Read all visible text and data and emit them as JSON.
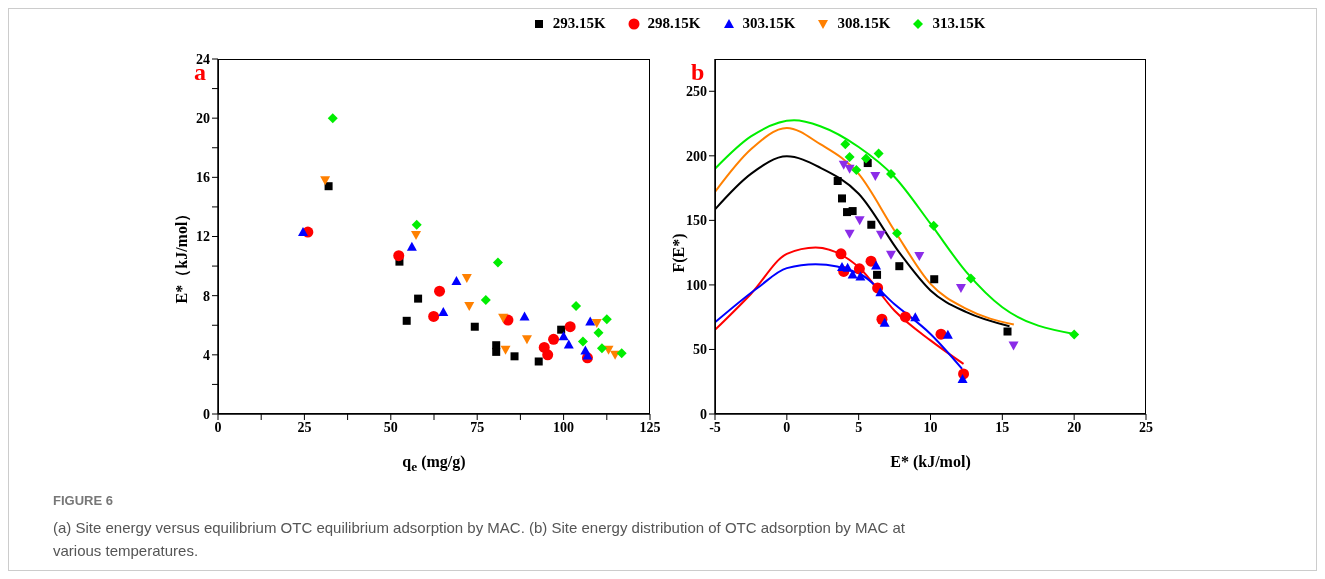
{
  "chart_data": [
    {
      "type": "scatter",
      "xlabel": "q$_{e}$ (mg/g)",
      "ylabel": "E*（kJ/mol）",
      "xlim": [
        0,
        125
      ],
      "xticks": [
        0,
        {
          "value": 12.5,
          "label": null
        },
        25,
        {
          "value": 37.5,
          "label": null
        },
        50,
        {
          "value": 62.5,
          "label": null
        },
        75,
        {
          "value": 87.5,
          "label": null
        },
        100,
        {
          "value": 112.5,
          "label": null
        },
        125
      ],
      "ylim": [
        0,
        24
      ],
      "yticks": [
        0,
        {
          "value": 2,
          "label": null
        },
        4,
        {
          "value": 6,
          "label": null
        },
        8,
        {
          "value": 10,
          "label": null
        },
        12,
        {
          "value": 14,
          "label": null
        },
        16,
        {
          "value": 18,
          "label": null
        },
        20,
        {
          "value": 22,
          "label": null
        },
        24
      ],
      "legend": "top",
      "annotations": [
        "a"
      ],
      "series": [
        {
          "name": "293.15K",
          "color": "#000000",
          "marker": "square",
          "x": [
            32.0,
            52.5,
            54.6,
            57.9,
            74.3,
            80.5,
            80.5,
            85.8,
            92.8,
            99.3
          ],
          "values": [
            15.4,
            10.3,
            6.3,
            7.8,
            5.9,
            4.65,
            4.2,
            3.9,
            3.55,
            5.7
          ]
        },
        {
          "name": "298.15K",
          "color": "#ff0000",
          "marker": "circle",
          "x": [
            26.0,
            52.3,
            62.4,
            64.1,
            83.9,
            94.4,
            95.4,
            97.1,
            101.9,
            106.9
          ],
          "values": [
            12.3,
            10.7,
            6.6,
            8.3,
            6.35,
            4.5,
            4.0,
            5.05,
            5.9,
            3.8
          ]
        },
        {
          "name": "303.15K",
          "color": "#0000ff",
          "marker": "triangle",
          "x": [
            24.6,
            56.1,
            65.2,
            69.0,
            88.7,
            100.0,
            101.5,
            106.3,
            106.9,
            107.7
          ],
          "values": [
            12.3,
            11.3,
            6.9,
            9.0,
            6.6,
            5.25,
            4.7,
            4.3,
            3.95,
            6.25
          ]
        },
        {
          "name": "308.15K",
          "color": "#ff8000",
          "marker": "triangle-down",
          "x": [
            31.0,
            57.3,
            72.0,
            72.7,
            82.5,
            83.2,
            89.4,
            109.6,
            113.0,
            114.9
          ],
          "values": [
            15.8,
            12.1,
            9.2,
            7.3,
            6.5,
            4.35,
            5.05,
            6.15,
            4.35,
            4.0
          ]
        },
        {
          "name": "313.15K",
          "color": "#00ee00",
          "marker": "diamond",
          "x": [
            33.2,
            57.5,
            77.5,
            81.0,
            103.6,
            105.6,
            110.1,
            111.1,
            112.5,
            116.8
          ],
          "values": [
            20.0,
            12.8,
            7.7,
            10.25,
            7.3,
            4.9,
            5.5,
            4.45,
            6.4,
            4.1
          ]
        }
      ]
    },
    {
      "type": "scatter",
      "xlabel": "E* (kJ/mol)",
      "ylabel": "F(E*)",
      "xlim": [
        -5,
        25
      ],
      "xticks": [
        -5,
        0,
        5,
        10,
        15,
        20,
        25
      ],
      "ylim": [
        0,
        275
      ],
      "yticks": [
        0,
        50,
        100,
        150,
        200,
        250
      ],
      "annotations": [
        "b",
        "FIGURE 6",
        "(a) Site energy versus equilibrium OTC equilibrium adsorption by MAC. (b) Site energy distribution of OTC adsorption by MAC at various temperatures."
      ],
      "series": [
        {
          "type": "line",
          "color": "#000000",
          "marker": "none",
          "x": [
            -5,
            -2.5,
            0,
            2.33,
            5,
            7.9,
            10,
            12.5,
            15.5
          ],
          "values": [
            158.5,
            186,
            199.6,
            190.8,
            170.6,
            124,
            95.7,
            78.9,
            68
          ]
        },
        {
          "type": "line",
          "color": "#ff8000",
          "marker": "none",
          "x": [
            -5,
            -2.5,
            0,
            2.33,
            5,
            7.5,
            10,
            12.5,
            15.8
          ],
          "values": [
            172,
            205,
            221.6,
            209,
            186,
            142,
            100.8,
            81.4,
            69.3
          ]
        },
        {
          "type": "line",
          "color": "#00ee00",
          "marker": "none",
          "x": [
            -5,
            -2.5,
            0.5,
            2.33,
            5,
            7.5,
            10,
            12.5,
            15,
            20
          ],
          "values": [
            190,
            215,
            227.5,
            222.9,
            206.8,
            183.6,
            147.4,
            109.9,
            82.7,
            62
          ]
        },
        {
          "type": "line",
          "color": "#ff0000",
          "marker": "none",
          "x": [
            -5,
            -2.5,
            0,
            2,
            5,
            7.5,
            10,
            12.3
          ],
          "values": [
            65.2,
            93,
            124,
            129,
            113.8,
            80,
            57,
            38.8
          ]
        },
        {
          "type": "line",
          "color": "#0000ff",
          "marker": "none",
          "x": [
            -5,
            -2,
            0,
            2,
            5,
            7.5,
            10,
            12.2
          ],
          "values": [
            71,
            98,
            113,
            116,
            109,
            85,
            62,
            35
          ]
        },
        {
          "color": "#000000",
          "marker": "square",
          "x": [
            5.63,
            3.54,
            3.84,
            4.19,
            4.58,
            5.88,
            6.28,
            7.83,
            10.26,
            15.36
          ],
          "values": [
            194.4,
            180.5,
            167,
            156.4,
            157.2,
            146.6,
            107.8,
            114.5,
            104.4,
            63.9
          ]
        },
        {
          "color": "#ff0000",
          "marker": "circle",
          "x": [
            3.77,
            3.96,
            5.05,
            5.86,
            6.32,
            6.62,
            8.25,
            10.73,
            12.3
          ],
          "values": [
            124.1,
            110.4,
            112.5,
            118.4,
            97.7,
            73.4,
            75.2,
            61.8,
            31
          ]
        },
        {
          "color": "#0000ff",
          "marker": "triangle",
          "x": [
            3.84,
            4.23,
            4.58,
            5.12,
            6.21,
            6.51,
            6.81,
            8.94,
            11.21,
            12.23
          ],
          "values": [
            113.8,
            113.2,
            108,
            106.5,
            115,
            94.4,
            70.6,
            75,
            61.3,
            27.1
          ]
        },
        {
          "color": "#8b2ce8",
          "marker": "triangle-down",
          "x": [
            3.96,
            4.37,
            6.16,
            5.07,
            4.37,
            6.55,
            7.25,
            9.22,
            12.12,
            15.78
          ],
          "values": [
            193,
            190,
            184.3,
            150,
            139.6,
            138.8,
            123.3,
            122.3,
            97.7,
            53
          ]
        },
        {
          "color": "#00ee00",
          "marker": "diamond",
          "x": [
            4.07,
            4.37,
            4.84,
            5.51,
            6.39,
            7.25,
            7.67,
            10.22,
            12.81,
            20.0
          ],
          "values": [
            208.9,
            199,
            189,
            198,
            201.7,
            186,
            140,
            145.8,
            105,
            61.5
          ]
        }
      ]
    }
  ]
}
